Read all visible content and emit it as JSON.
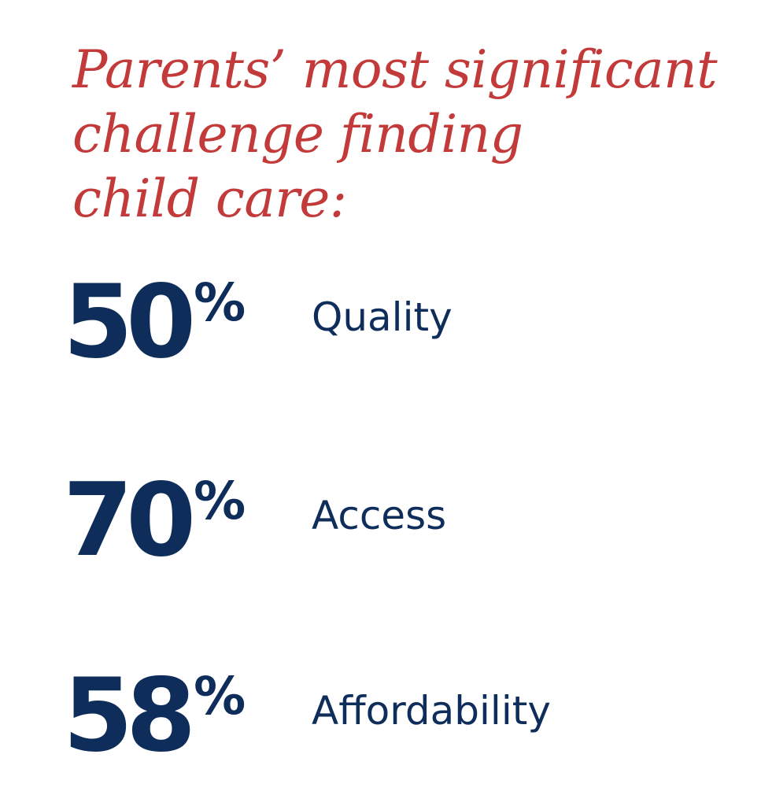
{
  "title": {
    "lines": [
      "Parents’ most significant",
      "challenge finding",
      "child care:"
    ]
  },
  "stats": [
    {
      "value": "50",
      "unit": "%",
      "label": "Quality"
    },
    {
      "value": "70",
      "unit": "%",
      "label": "Access"
    },
    {
      "value": "58",
      "unit": "%",
      "label": "Affordability"
    }
  ],
  "colors": {
    "title": "#c23b3a",
    "stat": "#0e2d5a",
    "background": "#ffffff"
  }
}
